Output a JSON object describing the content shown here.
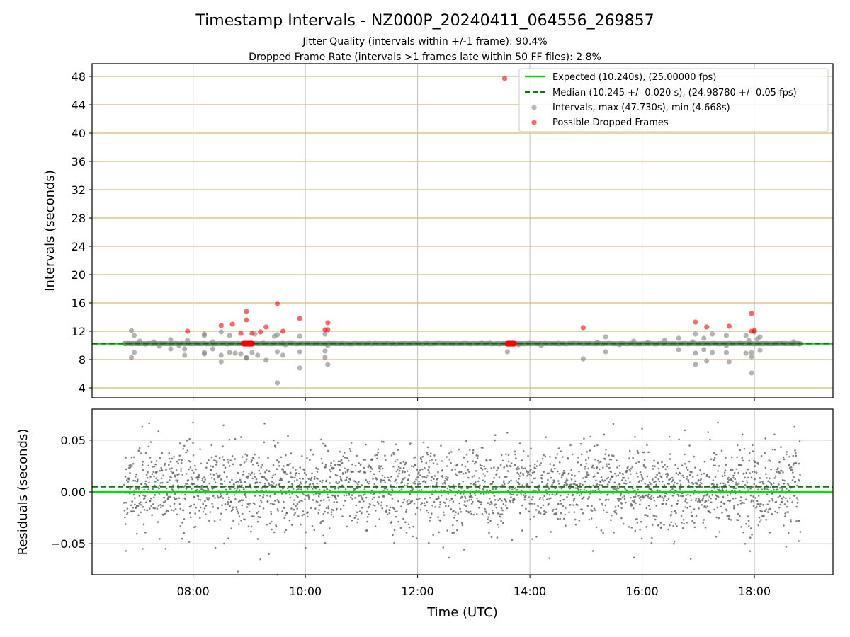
{
  "chart_data": {
    "title": "Timestamp Intervals - NZ000P_20240411_064556_269857",
    "subtitle_lines": [
      "Jitter Quality (intervals within +/-1 frame): 90.4%",
      "Dropped Frame Rate (intervals >1 frames late within 50 FF files): 2.8%"
    ],
    "xlabel": "Time (UTC)",
    "x_ticks": [
      "08:00",
      "10:00",
      "12:00",
      "14:00",
      "16:00",
      "18:00"
    ],
    "x_tick_hours": [
      8,
      10,
      12,
      14,
      16,
      18
    ],
    "x_range_hours": [
      6.2,
      19.4
    ],
    "data_time_range_hours": [
      6.77,
      18.82
    ],
    "panels": [
      {
        "type": "scatter",
        "ylabel": "Intervals (seconds)",
        "ylim": [
          2.6,
          49.8
        ],
        "y_ticks": [
          4,
          8,
          12,
          16,
          20,
          24,
          28,
          32,
          36,
          40,
          44,
          48
        ],
        "grid": "x-vertical grey, y-horizontal tan",
        "legend_position": "top-right",
        "expected_interval": 10.24,
        "median_interval": 10.245,
        "legend": [
          "Expected (10.240s), (25.00000 fps)",
          "Median (10.245 +/- 0.020 s), (24.98780 +/- 0.05 fps)",
          "Intervals, max (47.730s), min (4.668s)",
          "Possible Dropped Frames"
        ],
        "intervals_series": [
          [
            6.9,
            12.1
          ],
          [
            6.9,
            8.3
          ],
          [
            6.95,
            11.4
          ],
          [
            6.95,
            9.0
          ],
          [
            7.05,
            10.6
          ],
          [
            7.15,
            10.2
          ],
          [
            7.3,
            10.5
          ],
          [
            7.4,
            9.9
          ],
          [
            7.6,
            9.5
          ],
          [
            7.6,
            10.8
          ],
          [
            7.75,
            10.0
          ],
          [
            7.85,
            8.6
          ],
          [
            7.85,
            9.5
          ],
          [
            7.9,
            10.7
          ],
          [
            8.2,
            11.4
          ],
          [
            8.2,
            11.6
          ],
          [
            8.2,
            9.0
          ],
          [
            8.2,
            8.8
          ],
          [
            8.35,
            9.5
          ],
          [
            8.35,
            10.5
          ],
          [
            8.5,
            11.9
          ],
          [
            8.5,
            8.6
          ],
          [
            8.5,
            7.7
          ],
          [
            8.6,
            10.2
          ],
          [
            8.65,
            11.4
          ],
          [
            8.65,
            9.0
          ],
          [
            8.75,
            8.9
          ],
          [
            8.85,
            8.8
          ],
          [
            8.95,
            8.3
          ],
          [
            8.95,
            8.2
          ],
          [
            9.05,
            9.0
          ],
          [
            9.1,
            11.6
          ],
          [
            9.15,
            8.6
          ],
          [
            9.25,
            10.3
          ],
          [
            9.3,
            7.9
          ],
          [
            9.45,
            11.3
          ],
          [
            9.5,
            11.5
          ],
          [
            9.5,
            9.1
          ],
          [
            9.5,
            4.7
          ],
          [
            9.6,
            10.3
          ],
          [
            9.6,
            8.6
          ],
          [
            9.65,
            10.1
          ],
          [
            9.9,
            11.3
          ],
          [
            9.9,
            9.1
          ],
          [
            9.9,
            6.8
          ],
          [
            10.35,
            11.6
          ],
          [
            10.35,
            9.2
          ],
          [
            10.35,
            8.3
          ],
          [
            10.4,
            7.3
          ],
          [
            10.4,
            10.0
          ],
          [
            13.15,
            10.3
          ],
          [
            13.3,
            10.3
          ],
          [
            13.45,
            10.2
          ],
          [
            13.6,
            9.1
          ],
          [
            13.8,
            10.1
          ],
          [
            14.0,
            10.3
          ],
          [
            14.2,
            10.0
          ],
          [
            14.5,
            10.3
          ],
          [
            14.95,
            8.1
          ],
          [
            15.2,
            10.4
          ],
          [
            15.35,
            11.2
          ],
          [
            15.35,
            9.1
          ],
          [
            15.6,
            10.1
          ],
          [
            15.85,
            10.6
          ],
          [
            16.1,
            10.4
          ],
          [
            16.4,
            10.7
          ],
          [
            16.65,
            11.0
          ],
          [
            16.65,
            9.4
          ],
          [
            16.9,
            10.5
          ],
          [
            16.95,
            11.6
          ],
          [
            16.95,
            8.9
          ],
          [
            16.95,
            7.3
          ],
          [
            17.1,
            11.0
          ],
          [
            17.1,
            9.4
          ],
          [
            17.15,
            7.8
          ],
          [
            17.25,
            11.6
          ],
          [
            17.25,
            9.0
          ],
          [
            17.5,
            11.4
          ],
          [
            17.5,
            10.0
          ],
          [
            17.5,
            9.0
          ],
          [
            17.55,
            7.7
          ],
          [
            17.85,
            11.4
          ],
          [
            17.85,
            8.9
          ],
          [
            17.9,
            10.7
          ],
          [
            17.95,
            9.0
          ],
          [
            17.95,
            8.4
          ],
          [
            17.95,
            6.1
          ],
          [
            18.0,
            11.9
          ],
          [
            18.05,
            10.9
          ],
          [
            18.1,
            11.2
          ],
          [
            18.1,
            9.3
          ],
          [
            18.7,
            10.5
          ],
          [
            18.8,
            10.2
          ]
        ],
        "dropped_frames_series": [
          [
            7.9,
            12.0
          ],
          [
            8.5,
            12.8
          ],
          [
            8.7,
            13.0
          ],
          [
            8.85,
            11.7
          ],
          [
            8.95,
            14.8
          ],
          [
            8.95,
            13.6
          ],
          [
            9.05,
            11.7
          ],
          [
            9.2,
            11.9
          ],
          [
            9.3,
            12.6
          ],
          [
            9.5,
            15.9
          ],
          [
            9.6,
            12.0
          ],
          [
            9.9,
            13.8
          ],
          [
            10.35,
            12.2
          ],
          [
            10.4,
            12.2
          ],
          [
            10.4,
            13.2
          ],
          [
            13.55,
            47.7
          ],
          [
            14.95,
            12.5
          ],
          [
            16.95,
            13.3
          ],
          [
            17.15,
            12.6
          ],
          [
            17.55,
            12.7
          ],
          [
            17.95,
            12.0
          ],
          [
            17.95,
            14.5
          ],
          [
            18.0,
            12.1
          ]
        ],
        "dropped_frames_clusters": [
          {
            "x_from": 8.9,
            "x_to": 9.05,
            "y": 10.24
          },
          {
            "x_from": 13.6,
            "x_to": 13.72,
            "y": 10.24
          }
        ]
      },
      {
        "type": "scatter",
        "ylabel": "Residuals (seconds)",
        "ylim": [
          -0.08,
          0.08
        ],
        "y_ticks": [
          -0.05,
          0.0,
          0.05
        ],
        "y_tick_labels": [
          "−0.05",
          "0.00",
          "0.05"
        ],
        "grid": "both",
        "expected_residual": 0.0,
        "median_residual": 0.005,
        "residual_spread_sd": 0.02,
        "residual_cap": 0.067,
        "outliers": [
          [
            8.8,
            -0.077
          ],
          [
            9.35,
            -0.06
          ],
          [
            9.2,
            -0.065
          ],
          [
            9.5,
            -0.08
          ],
          [
            14.35,
            -0.064
          ],
          [
            7.1,
            -0.055
          ],
          [
            6.8,
            -0.057
          ],
          [
            8.0,
            0.067
          ],
          [
            17.35,
            0.067
          ],
          [
            16.0,
            0.061
          ]
        ]
      }
    ],
    "colors": {
      "expected": "#00e000",
      "median": "#008000",
      "intervals": "#808080",
      "dropped": "#ff0000",
      "y_grid_top": "#d2be7a",
      "grid": "#c0c0c0"
    }
  }
}
